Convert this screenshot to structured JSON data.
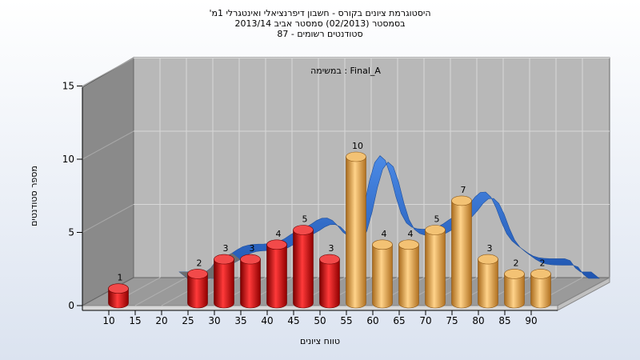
{
  "window": {
    "title_lines": [
      "היסטוגרמת ציונים בקורס - חשבון דיפרנציאלי ואינטגרלי 1מ'",
      "בסמסטר  (02/2013)  סמסטר אביב 2013/14",
      "סטודנטים רשומים - 87"
    ]
  },
  "chart_data": {
    "type": "bar",
    "annotation": "במשימה : Final_A",
    "xlabel": "טווח ציונים",
    "ylabel": "מספר סטודנטים",
    "x_ticks": [
      "10",
      "15",
      "20",
      "25",
      "30",
      "35",
      "40",
      "45",
      "50",
      "55",
      "60",
      "65",
      "70",
      "75",
      "80",
      "85",
      "90"
    ],
    "y_ticks": [
      "0",
      "5",
      "10",
      "15"
    ],
    "ylim": [
      0,
      15
    ],
    "grid": true,
    "bars": [
      {
        "x": 10,
        "value": 1
      },
      {
        "x": 25,
        "value": 2
      },
      {
        "x": 30,
        "value": 3
      },
      {
        "x": 35,
        "value": 3
      },
      {
        "x": 40,
        "value": 4
      },
      {
        "x": 45,
        "value": 5
      },
      {
        "x": 50,
        "value": 3
      },
      {
        "x": 55,
        "value": 10
      },
      {
        "x": 60,
        "value": 4
      },
      {
        "x": 65,
        "value": 4
      },
      {
        "x": 70,
        "value": 5
      },
      {
        "x": 75,
        "value": 7
      },
      {
        "x": 80,
        "value": 3
      },
      {
        "x": 85,
        "value": 2
      },
      {
        "x": 90,
        "value": 2
      }
    ],
    "colors": {
      "below_threshold": "#e02020",
      "above_threshold": "#e8a640",
      "ribbon": "#2f6fd0",
      "ribbon_dark": "#707070",
      "back_wall": "#b8b8b8",
      "side_wall": "#8a8a8a",
      "floor": "#9a9a9a"
    },
    "threshold_x": 55
  }
}
